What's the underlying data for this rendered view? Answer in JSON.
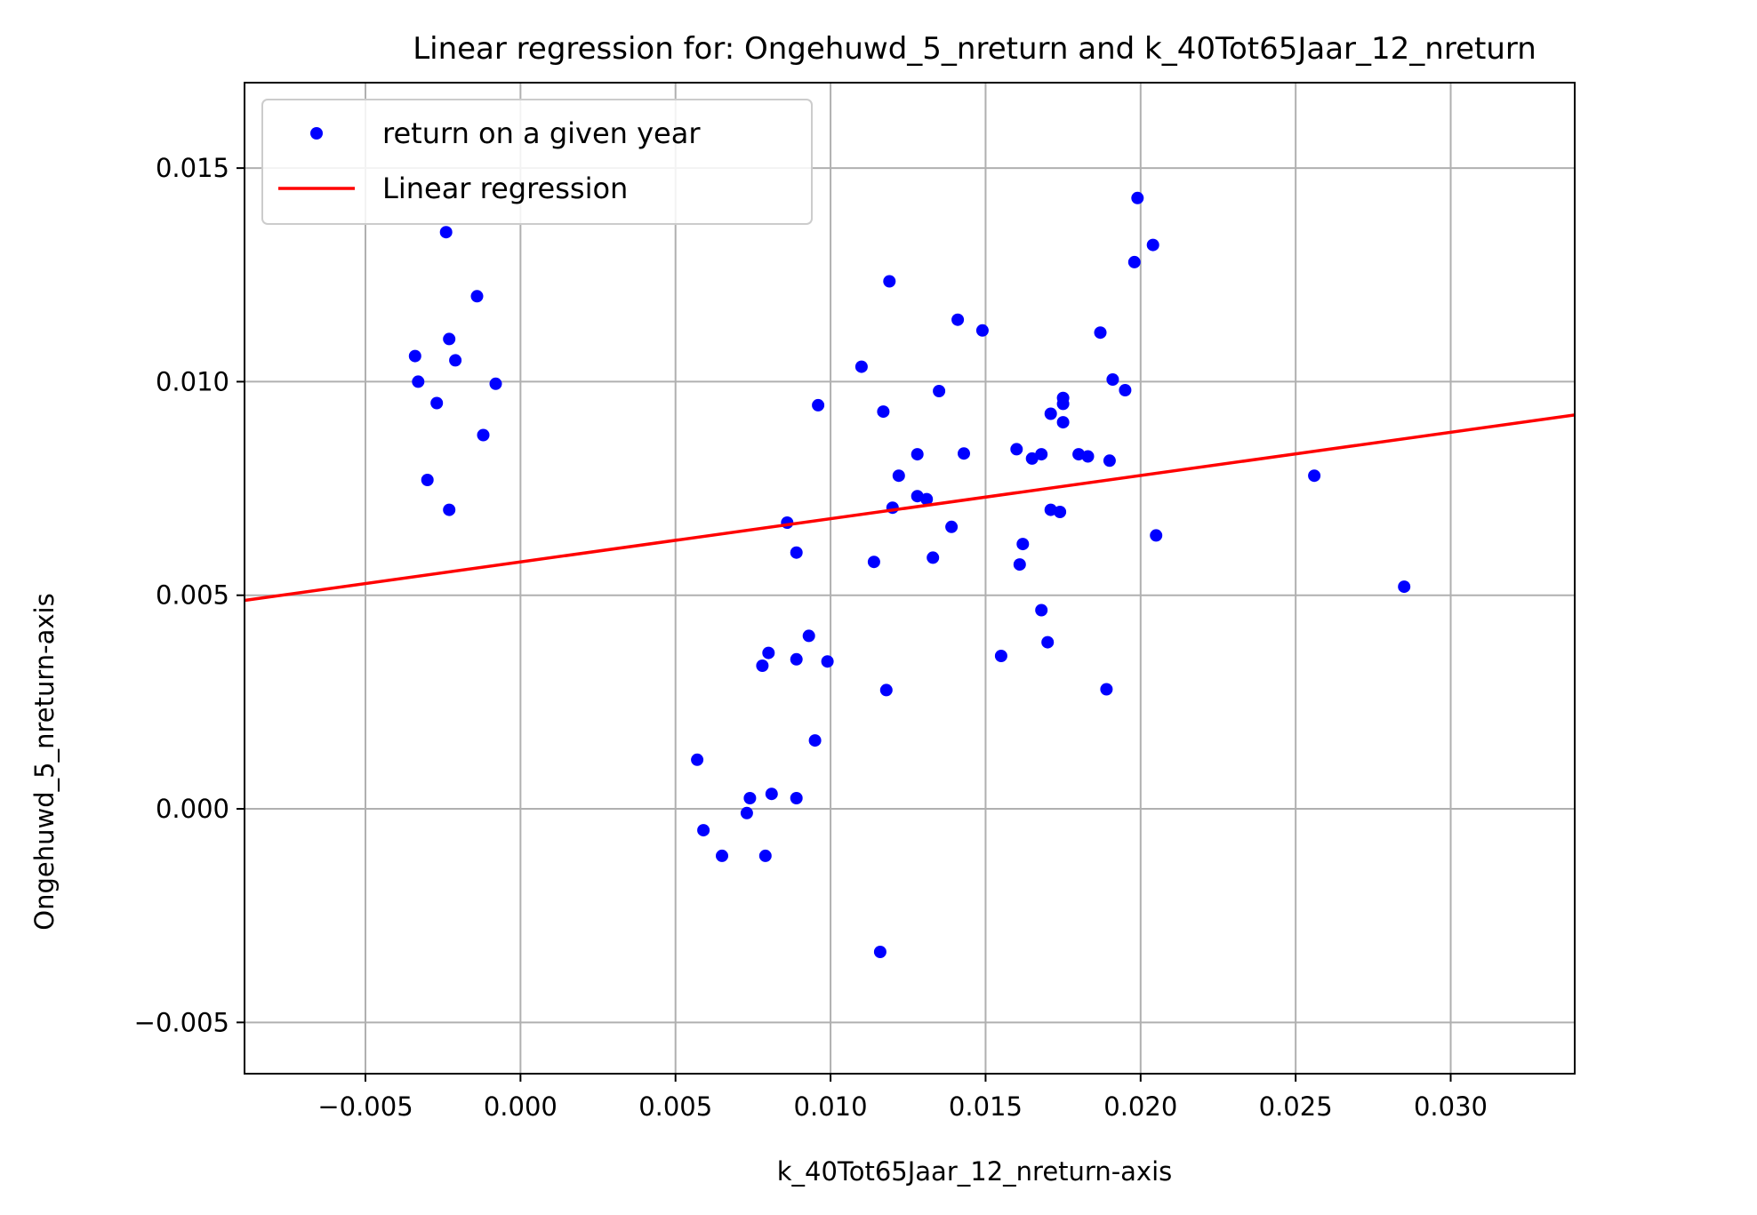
{
  "chart_data": {
    "type": "scatter",
    "title": "Linear regression for: Ongehuwd_5_nreturn and k_40Tot65Jaar_12_nreturn",
    "xlabel": "k_40Tot65Jaar_12_nreturn-axis",
    "ylabel": "Ongehuwd_5_nreturn-axis",
    "xlim": [
      -0.0089,
      0.034
    ],
    "ylim": [
      -0.0062,
      0.017
    ],
    "xticks": [
      -0.005,
      0.0,
      0.005,
      0.01,
      0.015,
      0.02,
      0.025,
      0.03
    ],
    "xtick_labels": [
      "−0.005",
      "0.000",
      "0.005",
      "0.010",
      "0.015",
      "0.020",
      "0.025",
      "0.030"
    ],
    "yticks": [
      -0.005,
      0.0,
      0.005,
      0.01,
      0.015
    ],
    "ytick_labels": [
      "−0.005",
      "0.000",
      "0.005",
      "0.010",
      "0.015"
    ],
    "grid": true,
    "legend_position": "top-left",
    "series": [
      {
        "name": "return on a given year",
        "kind": "scatter",
        "color": "#0000ff",
        "points": [
          [
            -0.0024,
            0.0135
          ],
          [
            -0.0014,
            0.012
          ],
          [
            -0.0034,
            0.0106
          ],
          [
            -0.0023,
            0.011
          ],
          [
            -0.0021,
            0.0105
          ],
          [
            -0.0033,
            0.01
          ],
          [
            -0.0008,
            0.00995
          ],
          [
            -0.0027,
            0.0095
          ],
          [
            -0.0012,
            0.00875
          ],
          [
            -0.003,
            0.0077
          ],
          [
            -0.0023,
            0.007
          ],
          [
            0.0057,
            0.00115
          ],
          [
            0.0059,
            -0.0005
          ],
          [
            0.0065,
            -0.0011
          ],
          [
            0.0073,
            -0.0001
          ],
          [
            0.0074,
            0.00025
          ],
          [
            0.0081,
            0.00035
          ],
          [
            0.0079,
            -0.0011
          ],
          [
            0.0089,
            0.00025
          ],
          [
            0.0095,
            0.0016
          ],
          [
            0.0078,
            0.00335
          ],
          [
            0.008,
            0.00365
          ],
          [
            0.0089,
            0.0035
          ],
          [
            0.0093,
            0.00405
          ],
          [
            0.0099,
            0.00345
          ],
          [
            0.0089,
            0.006
          ],
          [
            0.0086,
            0.0067
          ],
          [
            0.0096,
            0.00945
          ],
          [
            0.011,
            0.01035
          ],
          [
            0.0117,
            0.0093
          ],
          [
            0.0119,
            0.01235
          ],
          [
            0.0114,
            0.00578
          ],
          [
            0.0118,
            0.00278
          ],
          [
            0.0116,
            -0.00335
          ],
          [
            0.0122,
            0.0078
          ],
          [
            0.012,
            0.00705
          ],
          [
            0.0128,
            0.00732
          ],
          [
            0.0131,
            0.00725
          ],
          [
            0.0128,
            0.0083
          ],
          [
            0.0135,
            0.00978
          ],
          [
            0.0133,
            0.00588
          ],
          [
            0.0139,
            0.0066
          ],
          [
            0.0141,
            0.01145
          ],
          [
            0.0143,
            0.00832
          ],
          [
            0.0149,
            0.0112
          ],
          [
            0.016,
            0.00842
          ],
          [
            0.0162,
            0.0062
          ],
          [
            0.0161,
            0.00572
          ],
          [
            0.0155,
            0.00358
          ],
          [
            0.0165,
            0.0082
          ],
          [
            0.0168,
            0.0083
          ],
          [
            0.0168,
            0.00465
          ],
          [
            0.017,
            0.0039
          ],
          [
            0.0171,
            0.00925
          ],
          [
            0.0171,
            0.007
          ],
          [
            0.0174,
            0.00695
          ],
          [
            0.0175,
            0.00962
          ],
          [
            0.0175,
            0.00948
          ],
          [
            0.0175,
            0.00905
          ],
          [
            0.018,
            0.0083
          ],
          [
            0.0183,
            0.00825
          ],
          [
            0.0187,
            0.01115
          ],
          [
            0.019,
            0.00815
          ],
          [
            0.0191,
            0.01005
          ],
          [
            0.0195,
            0.0098
          ],
          [
            0.0189,
            0.0028
          ],
          [
            0.0198,
            0.0128
          ],
          [
            0.0199,
            0.0143
          ],
          [
            0.0204,
            0.0132
          ],
          [
            0.0205,
            0.0064
          ],
          [
            0.0256,
            0.0078
          ],
          [
            0.0285,
            0.0052
          ]
        ]
      },
      {
        "name": "Linear regression",
        "kind": "line",
        "color": "#ff0000",
        "points": [
          [
            -0.0089,
            0.00488
          ],
          [
            0.034,
            0.00922
          ]
        ]
      }
    ]
  }
}
